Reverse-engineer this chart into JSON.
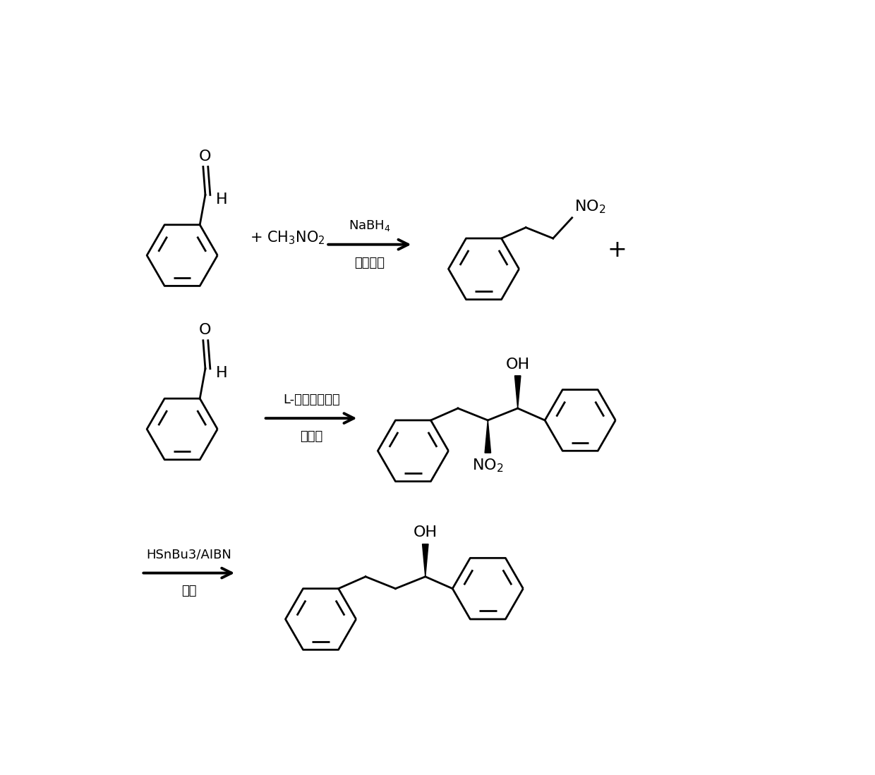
{
  "bg_color": "#ffffff",
  "line_color": "#000000",
  "lw": 2.0,
  "r1y": 8.2,
  "r2y": 5.0,
  "r3y": 1.9,
  "benz_r": 0.65,
  "reaction1": {
    "reagent_above": "NaBH$_4$",
    "reagent_below": "碱性环境"
  },
  "reaction2": {
    "reagent_above": "L-肘氨酸衍生物",
    "reagent_below": "添加剑"
  },
  "reaction3": {
    "reagent_above": "HSnBu3/AIBN",
    "reagent_below": "甲苯"
  }
}
